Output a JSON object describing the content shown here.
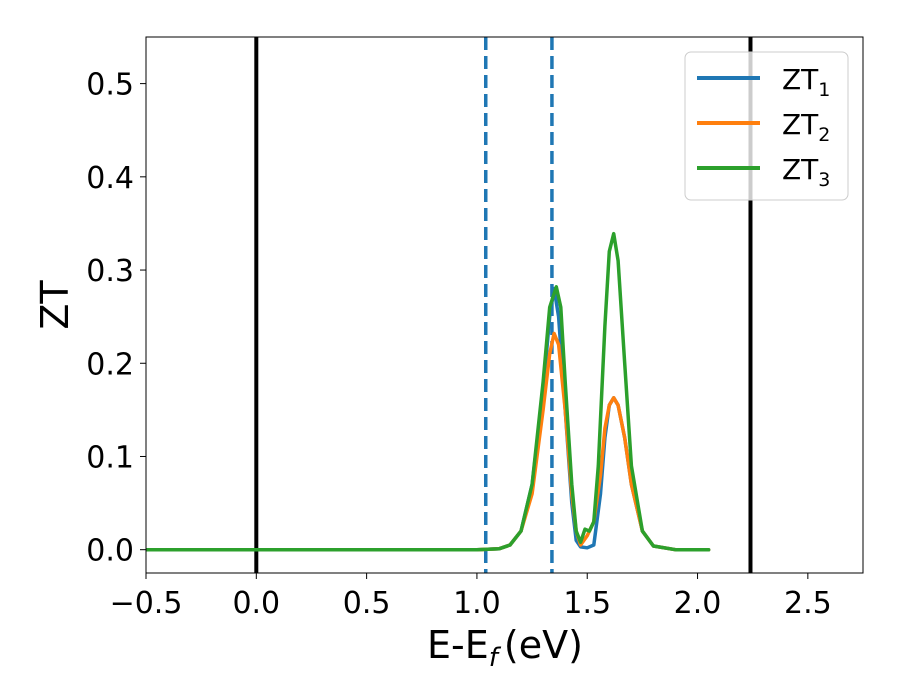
{
  "chart_data": {
    "type": "line",
    "xlabel": "E-E",
    "xlabel_sub": "f",
    "xlabel_unit": "(eV)",
    "ylabel": "ZT",
    "xlim": [
      -0.5,
      2.75
    ],
    "ylim": [
      -0.025,
      0.55
    ],
    "xticks": [
      -0.5,
      0.0,
      0.5,
      1.0,
      1.5,
      2.0,
      2.5
    ],
    "xtick_labels": [
      "−0.5",
      "0.0",
      "0.5",
      "1.0",
      "1.5",
      "2.0",
      "2.5"
    ],
    "yticks": [
      0.0,
      0.1,
      0.2,
      0.3,
      0.4,
      0.5
    ],
    "ytick_labels": [
      "0.0",
      "0.1",
      "0.2",
      "0.3",
      "0.4",
      "0.5"
    ],
    "grid": false,
    "legend_position": "top-right",
    "vlines": [
      {
        "x": 0.0,
        "style": "solid",
        "color": "#000000"
      },
      {
        "x": 2.24,
        "style": "solid",
        "color": "#000000"
      },
      {
        "x": 1.04,
        "style": "dashed",
        "color": "#1f77b4"
      },
      {
        "x": 1.34,
        "style": "dashed",
        "color": "#1f77b4"
      }
    ],
    "series": [
      {
        "name": "ZT",
        "subscript": "1",
        "color": "#1f77b4",
        "x": [
          -0.5,
          1.0,
          1.1,
          1.15,
          1.2,
          1.25,
          1.3,
          1.33,
          1.35,
          1.37,
          1.4,
          1.43,
          1.45,
          1.47,
          1.5,
          1.53,
          1.56,
          1.58,
          1.6,
          1.62,
          1.64,
          1.67,
          1.7,
          1.75,
          1.8,
          1.9,
          2.05
        ],
        "y": [
          0.0,
          0.0,
          0.001,
          0.005,
          0.02,
          0.07,
          0.17,
          0.25,
          0.28,
          0.25,
          0.15,
          0.05,
          0.01,
          0.003,
          0.002,
          0.005,
          0.06,
          0.12,
          0.155,
          0.163,
          0.155,
          0.12,
          0.07,
          0.02,
          0.004,
          0.0,
          0.0
        ]
      },
      {
        "name": "ZT",
        "subscript": "2",
        "color": "#ff7f0e",
        "x": [
          -0.5,
          1.0,
          1.1,
          1.15,
          1.2,
          1.25,
          1.3,
          1.33,
          1.35,
          1.37,
          1.4,
          1.43,
          1.45,
          1.47,
          1.5,
          1.53,
          1.56,
          1.58,
          1.6,
          1.62,
          1.64,
          1.67,
          1.7,
          1.75,
          1.8,
          1.9,
          2.05
        ],
        "y": [
          0.0,
          0.0,
          0.001,
          0.005,
          0.02,
          0.06,
          0.15,
          0.21,
          0.232,
          0.22,
          0.15,
          0.06,
          0.02,
          0.005,
          0.015,
          0.03,
          0.08,
          0.13,
          0.155,
          0.163,
          0.155,
          0.12,
          0.07,
          0.02,
          0.004,
          0.0,
          0.0
        ]
      },
      {
        "name": "ZT",
        "subscript": "3",
        "color": "#2ca02c",
        "x": [
          -0.5,
          1.0,
          1.1,
          1.15,
          1.2,
          1.25,
          1.3,
          1.33,
          1.36,
          1.38,
          1.4,
          1.43,
          1.45,
          1.47,
          1.49,
          1.51,
          1.53,
          1.55,
          1.58,
          1.6,
          1.62,
          1.64,
          1.67,
          1.7,
          1.75,
          1.8,
          1.9,
          2.05
        ],
        "y": [
          0.0,
          0.0,
          0.001,
          0.005,
          0.02,
          0.07,
          0.18,
          0.26,
          0.282,
          0.26,
          0.18,
          0.07,
          0.02,
          0.008,
          0.022,
          0.02,
          0.03,
          0.09,
          0.24,
          0.32,
          0.339,
          0.31,
          0.2,
          0.09,
          0.02,
          0.004,
          0.0,
          0.0
        ]
      }
    ]
  }
}
